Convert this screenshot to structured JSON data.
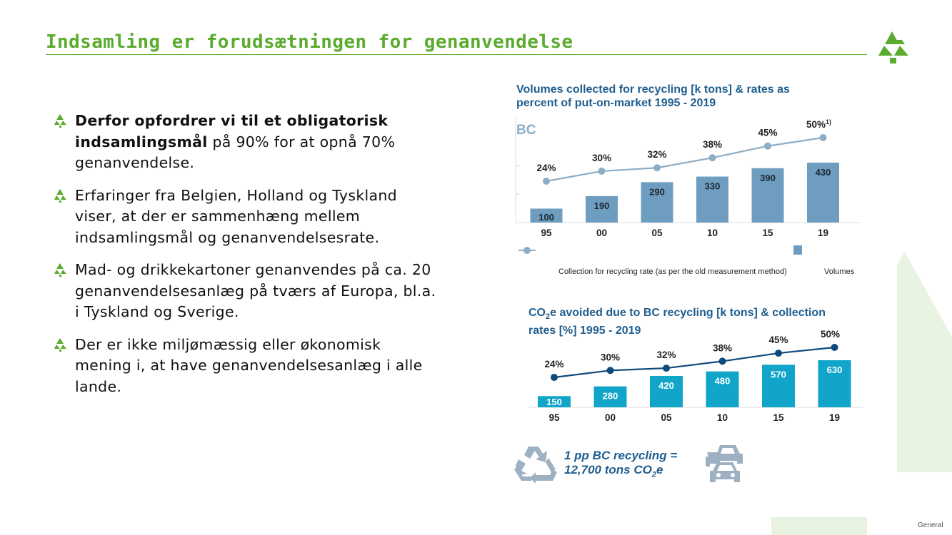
{
  "slide": {
    "title": "Indsamling er forudsætningen for genanvendelse",
    "footer_label": "General"
  },
  "bullets": [
    {
      "bold": "Derfor opfordrer vi til et obligatorisk indsamlingsmål",
      "text": " på 90% for at opnå 70% genanvendelse."
    },
    {
      "bold": "",
      "text": "Erfaringer fra Belgien, Holland og Tyskland viser, at der er sammenhæng mellem indsamlingsmål og genanvendelsesrate."
    },
    {
      "bold": "",
      "text": "Mad- og drikkekartoner genanvendes på ca. 20 genanvendelsesanlæg på tværs af Europa, bl.a. i Tyskland og Sverige."
    },
    {
      "bold": "",
      "text": "Der er ikke miljømæssig eller økonomisk mening i, at have genanvendelsesanlæg i alle lande."
    }
  ],
  "colors": {
    "brand_green": "#5aab2e",
    "chart_title_blue": "#1f5e8f",
    "chart1_bar": "#6e9dc0",
    "chart1_line": "#8cadc6",
    "chart2_bar": "#10a5c9",
    "chart2_line": "#0d4a7c",
    "icon_grey": "#9eb1c2"
  },
  "chart_data": [
    {
      "type": "bar",
      "title_line1": "Volumes collected for recycling [k tons] & rates as",
      "title_line2": "percent of put-on-market 1995 - 2019",
      "panel_label": "BC",
      "categories": [
        "95",
        "00",
        "05",
        "10",
        "15",
        "19"
      ],
      "series": [
        {
          "name": "Volumes",
          "type": "bar",
          "values": [
            100,
            190,
            290,
            330,
            390,
            430
          ],
          "value_labels": [
            "100",
            "190",
            "290",
            "330",
            "390",
            "430"
          ]
        },
        {
          "name": "Collection for recycling rate (as per the old measurement method)",
          "type": "line",
          "values": [
            24,
            30,
            32,
            38,
            45,
            50
          ],
          "value_labels": [
            "24%",
            "30%",
            "32%",
            "38%",
            "45%",
            "50%"
          ]
        }
      ],
      "footnote_mark": "1)",
      "grid": true,
      "legend_position": "bottom"
    },
    {
      "type": "bar",
      "title_line1": "CO",
      "title_sub1": "2",
      "title_rest1": "e avoided due to BC recycling [k tons] & collection",
      "title_line2": "rates  [%] 1995 - 2019",
      "categories": [
        "95",
        "00",
        "05",
        "10",
        "15",
        "19"
      ],
      "series": [
        {
          "type": "bar",
          "values": [
            150,
            280,
            420,
            480,
            570,
            630
          ],
          "value_labels": [
            "150",
            "280",
            "420",
            "480",
            "570",
            "630"
          ]
        },
        {
          "type": "line",
          "values": [
            24,
            30,
            32,
            38,
            45,
            50
          ],
          "value_labels": [
            "24%",
            "30%",
            "32%",
            "38%",
            "45%",
            "50%"
          ]
        }
      ],
      "grid": false
    }
  ],
  "claim": {
    "line1": "1 pp BC recycling =",
    "line2_prefix": "12,700 tons CO",
    "line2_sub": "2",
    "line2_suffix": "e",
    "icons": [
      "recycle-icon",
      "cars-icon"
    ]
  }
}
